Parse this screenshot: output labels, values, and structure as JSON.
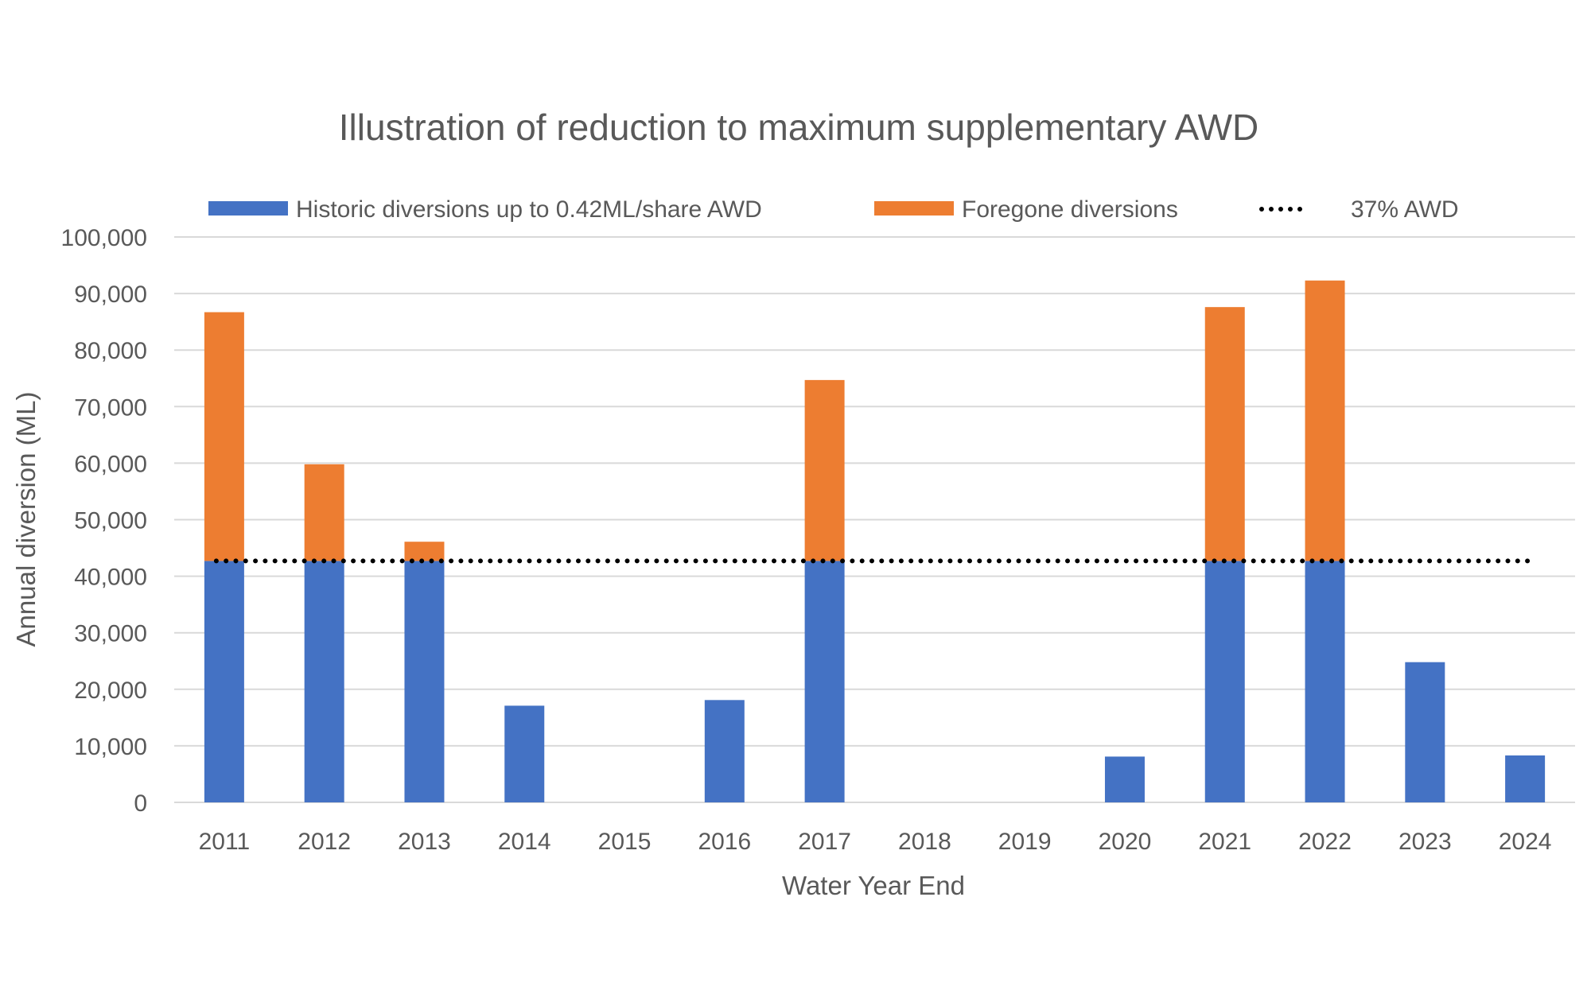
{
  "chart_data": {
    "type": "bar",
    "stacked": true,
    "title": "Illustration of reduction to maximum supplementary AWD",
    "xlabel": "Water Year End",
    "ylabel": "Annual diversion (ML)",
    "ylim": [
      0,
      100000
    ],
    "yticks": [
      "0",
      "10,000",
      "20,000",
      "30,000",
      "40,000",
      "50,000",
      "60,000",
      "70,000",
      "80,000",
      "90,000",
      "100,000"
    ],
    "grid": true,
    "legend_position": "top",
    "categories": [
      "2011",
      "2012",
      "2013",
      "2014",
      "2015",
      "2016",
      "2017",
      "2018",
      "2019",
      "2020",
      "2021",
      "2022",
      "2023",
      "2024"
    ],
    "series": [
      {
        "name": "Historic diversions up to 0.42ML/share AWD",
        "color": "#4472C4",
        "values": [
          42700,
          42700,
          42700,
          17100,
          0,
          18100,
          42700,
          0,
          0,
          8100,
          42700,
          42700,
          24800,
          8300
        ]
      },
      {
        "name": "Foregone diversions",
        "color": "#ED7D31",
        "values": [
          44000,
          17100,
          3400,
          0,
          0,
          0,
          32000,
          0,
          0,
          0,
          44900,
          49600,
          0,
          0
        ]
      }
    ],
    "reference_line": {
      "name": "37% AWD",
      "value": 42700,
      "color": "#000000",
      "style": "dotted"
    }
  }
}
